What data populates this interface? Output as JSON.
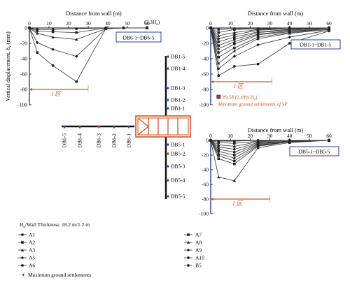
{
  "chart_data": [
    {
      "id": "db6",
      "type": "line",
      "xlabel": "Distance from wall (m)",
      "ylabel": "Vertical displacement, δ",
      "ylabel_sub": "v",
      "ylabel_unit": "(mm)",
      "xlim": [
        0,
        60
      ],
      "ylim": [
        -100,
        0
      ],
      "xticks": [
        0,
        10,
        20,
        30,
        40,
        50,
        60
      ],
      "yticks": [
        0,
        -20,
        -40,
        -60,
        -80,
        -100
      ],
      "box_label": "DB6-1~DB6-5",
      "extra_label": "(3.3H",
      "extra_label_sub": "e",
      "extra_label_end": ")",
      "I_label": "I 区",
      "I_level": -80,
      "I_extent": 30,
      "series": [
        {
          "x": [
            0,
            4,
            12,
            24,
            39,
            48,
            60
          ],
          "y": [
            0,
            -2,
            -2,
            -1,
            0,
            0,
            0
          ]
        },
        {
          "x": [
            0,
            4,
            12,
            24,
            39,
            48,
            60
          ],
          "y": [
            0,
            -4,
            -5,
            -6,
            0,
            0,
            0
          ]
        },
        {
          "x": [
            0,
            4,
            12,
            24,
            39,
            48,
            60
          ],
          "y": [
            0,
            -7,
            -12,
            -15,
            -1,
            0,
            0
          ]
        },
        {
          "x": [
            0,
            4,
            12,
            24,
            39,
            48,
            60
          ],
          "y": [
            0,
            -19,
            -28,
            -37,
            -1,
            0,
            0
          ]
        },
        {
          "x": [
            0,
            4,
            12,
            24,
            39,
            48,
            60
          ],
          "y": [
            0,
            -32,
            -49,
            -70,
            -1,
            0,
            0
          ]
        }
      ]
    },
    {
      "id": "db1",
      "type": "line",
      "xlabel": "Distance from wall (m)",
      "xlim": [
        0,
        60
      ],
      "ylim": [
        -100,
        0
      ],
      "xticks": [
        0,
        10,
        20,
        30,
        40,
        50,
        60
      ],
      "yticks": [
        0,
        -20,
        -40,
        -60,
        -80,
        -100
      ],
      "box_label": "DB1-1~DB1-5",
      "I_label": "I 区",
      "I_level": -70,
      "I_extent": 31,
      "max_settlement": {
        "x": 4,
        "y": -89.58,
        "label": "89.58 (0.49% H",
        "label_sub": "e",
        "label_end": ")",
        "note": "Maximum ground settlements of SP"
      },
      "series": [
        {
          "x": [
            0,
            4,
            12,
            24,
            40,
            60
          ],
          "y": [
            0,
            -2,
            -1,
            -1,
            0,
            0
          ]
        },
        {
          "x": [
            0,
            4,
            12,
            24,
            40,
            60
          ],
          "y": [
            0,
            -6,
            -2,
            -1,
            0,
            0
          ]
        },
        {
          "x": [
            0,
            4,
            12,
            24,
            40,
            60
          ],
          "y": [
            0,
            -10,
            -6,
            -2,
            -1,
            0
          ]
        },
        {
          "x": [
            0,
            4,
            12,
            24,
            40,
            60
          ],
          "y": [
            0,
            -14,
            -9,
            -3,
            -1,
            0
          ]
        },
        {
          "x": [
            0,
            4,
            12,
            24,
            40,
            60
          ],
          "y": [
            0,
            -18,
            -12,
            -5,
            -2,
            0
          ]
        },
        {
          "x": [
            0,
            4,
            12,
            24,
            40,
            60
          ],
          "y": [
            0,
            -23,
            -15,
            -6,
            -3,
            0
          ]
        },
        {
          "x": [
            0,
            4,
            12,
            24,
            40,
            60
          ],
          "y": [
            0,
            -27,
            -18,
            -8,
            -4,
            -1
          ]
        },
        {
          "x": [
            0,
            4,
            12,
            24,
            40,
            60
          ],
          "y": [
            0,
            -32,
            -21,
            -9,
            -5,
            -1
          ]
        },
        {
          "x": [
            0,
            4,
            12,
            24,
            40,
            60
          ],
          "y": [
            0,
            -38,
            -26,
            -12,
            -6,
            -1
          ]
        },
        {
          "x": [
            0,
            4,
            12,
            24,
            40,
            60
          ],
          "y": [
            0,
            -46,
            -30,
            -14,
            -7,
            -2
          ]
        },
        {
          "x": [
            0,
            4,
            12,
            24,
            40,
            60
          ],
          "y": [
            0,
            -53,
            -37,
            -22,
            -12,
            -3
          ]
        },
        {
          "x": [
            0,
            4,
            12,
            24,
            40,
            60
          ],
          "y": [
            0,
            -62,
            -50,
            -47,
            -20,
            -4
          ]
        }
      ]
    },
    {
      "id": "db5",
      "type": "line",
      "xlabel": "Distance from wall (m)",
      "xlim": [
        0,
        60
      ],
      "ylim": [
        -100,
        0
      ],
      "xticks": [
        0,
        10,
        20,
        30,
        40,
        50,
        60
      ],
      "yticks": [
        0,
        -20,
        -40,
        -60,
        -80,
        -100
      ],
      "box_label": "DB5-1~DB5-5",
      "I_label": "I 区",
      "I_level": -80,
      "I_extent": 30,
      "series": [
        {
          "x": [
            0,
            4,
            12,
            24,
            40,
            60
          ],
          "y": [
            0,
            -1,
            -1,
            0,
            0,
            0
          ]
        },
        {
          "x": [
            0,
            4,
            12,
            24,
            40,
            60
          ],
          "y": [
            0,
            -3,
            -4,
            -1,
            0,
            0
          ]
        },
        {
          "x": [
            0,
            4,
            12,
            24,
            40,
            60
          ],
          "y": [
            0,
            -6,
            -8,
            -2,
            0,
            0
          ]
        },
        {
          "x": [
            0,
            4,
            12,
            24,
            40,
            60
          ],
          "y": [
            0,
            -9,
            -12,
            -3,
            -1,
            0
          ]
        },
        {
          "x": [
            0,
            4,
            12,
            24,
            40,
            60
          ],
          "y": [
            0,
            -12,
            -16,
            -4,
            -1,
            0
          ]
        },
        {
          "x": [
            0,
            4,
            12,
            24,
            40,
            60
          ],
          "y": [
            0,
            -15,
            -20,
            -5,
            -1,
            0
          ]
        },
        {
          "x": [
            0,
            4,
            12,
            24,
            40,
            60
          ],
          "y": [
            0,
            -18,
            -24,
            -6,
            -2,
            0
          ]
        },
        {
          "x": [
            0,
            4,
            12,
            24,
            40,
            60
          ],
          "y": [
            0,
            -21,
            -28,
            -7,
            -2,
            0
          ]
        },
        {
          "x": [
            0,
            4,
            12,
            24,
            40,
            60
          ],
          "y": [
            0,
            -25,
            -32,
            -8,
            -2,
            0
          ]
        },
        {
          "x": [
            0,
            4,
            12,
            24,
            40,
            60
          ],
          "y": [
            0,
            -50,
            -55,
            -10,
            -3,
            0
          ]
        }
      ]
    }
  ],
  "plan": {
    "db6_labels": [
      "DB6-5",
      "DB6-4",
      "DB6-3",
      "DB6-2",
      "DB6-1"
    ],
    "db1_labels": [
      "DB1-5",
      "DB1-4",
      "DB1-3",
      "DB1-2",
      "DB1-1"
    ],
    "db5_labels": [
      "DB5-1",
      "DB5-2",
      "DB5-3",
      "DB5-4",
      "DB5-5"
    ]
  },
  "legend": {
    "title": "H",
    "title_sub": "e",
    "title_rest": "/Wall Thickness: 18.2 m/1.2 m",
    "left": [
      "A1",
      "A2",
      "A3",
      "A5",
      "A6"
    ],
    "right": [
      "A7",
      "A8",
      "A9",
      "A10",
      "B5"
    ],
    "settlement_label": "Maximum ground settlements"
  },
  "colors": {
    "axis_blue": "#2b3f9e",
    "orange": "#d9531e",
    "red": "#cc2a1f",
    "line": "#333333"
  }
}
